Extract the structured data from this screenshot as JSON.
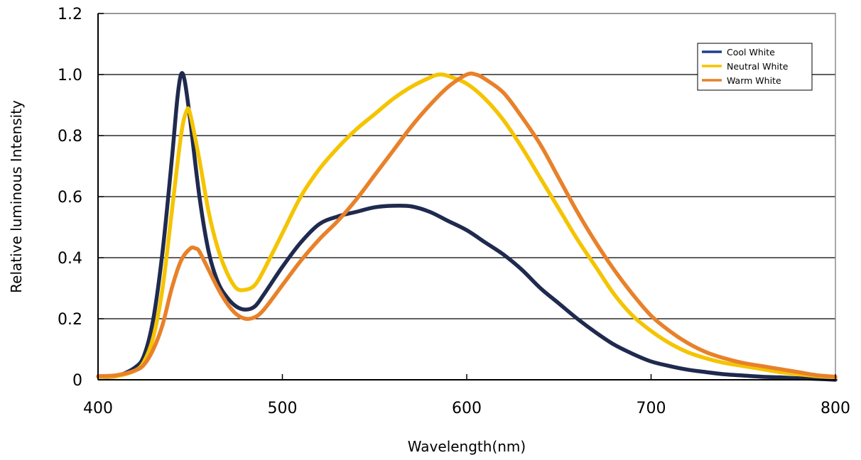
{
  "chart_data": {
    "type": "line",
    "title": "",
    "xlabel": "Wavelength(nm)",
    "ylabel": "Relative luminous Intensity",
    "xlim": [
      400,
      800
    ],
    "ylim": [
      0,
      1.2
    ],
    "xticks": [
      400,
      500,
      600,
      700,
      800
    ],
    "xtick_labels": [
      "400",
      "500",
      "600",
      "700",
      "800"
    ],
    "yticks": [
      0,
      0.2,
      0.4,
      0.6,
      0.8,
      1.0,
      1.2
    ],
    "ytick_labels": [
      "0",
      "0.2",
      "0.4",
      "0.6",
      "0.8",
      "1.0",
      "1.2"
    ],
    "grid": "horizontal",
    "legend_position": "top-right",
    "series": [
      {
        "name": "Cool White",
        "color": "#1f2a4e",
        "legend_color": "#1f3e8f",
        "points": [
          [
            400,
            0.01
          ],
          [
            410,
            0.012
          ],
          [
            420,
            0.04
          ],
          [
            425,
            0.08
          ],
          [
            430,
            0.2
          ],
          [
            435,
            0.42
          ],
          [
            440,
            0.72
          ],
          [
            443,
            0.92
          ],
          [
            445,
            1.0
          ],
          [
            447,
            0.98
          ],
          [
            450,
            0.85
          ],
          [
            455,
            0.6
          ],
          [
            460,
            0.42
          ],
          [
            465,
            0.32
          ],
          [
            470,
            0.27
          ],
          [
            475,
            0.24
          ],
          [
            480,
            0.23
          ],
          [
            485,
            0.24
          ],
          [
            490,
            0.28
          ],
          [
            500,
            0.37
          ],
          [
            510,
            0.45
          ],
          [
            520,
            0.51
          ],
          [
            530,
            0.535
          ],
          [
            540,
            0.55
          ],
          [
            550,
            0.565
          ],
          [
            560,
            0.57
          ],
          [
            570,
            0.568
          ],
          [
            580,
            0.55
          ],
          [
            590,
            0.52
          ],
          [
            600,
            0.49
          ],
          [
            610,
            0.45
          ],
          [
            620,
            0.41
          ],
          [
            630,
            0.36
          ],
          [
            640,
            0.3
          ],
          [
            650,
            0.25
          ],
          [
            660,
            0.2
          ],
          [
            670,
            0.155
          ],
          [
            680,
            0.115
          ],
          [
            690,
            0.085
          ],
          [
            700,
            0.06
          ],
          [
            710,
            0.045
          ],
          [
            720,
            0.033
          ],
          [
            730,
            0.025
          ],
          [
            740,
            0.018
          ],
          [
            750,
            0.014
          ],
          [
            760,
            0.01
          ],
          [
            770,
            0.008
          ],
          [
            780,
            0.005
          ],
          [
            790,
            0.003
          ],
          [
            800,
            0.0
          ]
        ]
      },
      {
        "name": "Neutral White",
        "color": "#f5c400",
        "legend_color": "#f5c400",
        "points": [
          [
            400,
            0.01
          ],
          [
            410,
            0.012
          ],
          [
            420,
            0.03
          ],
          [
            425,
            0.06
          ],
          [
            430,
            0.14
          ],
          [
            435,
            0.3
          ],
          [
            440,
            0.55
          ],
          [
            445,
            0.8
          ],
          [
            448,
            0.88
          ],
          [
            450,
            0.87
          ],
          [
            455,
            0.72
          ],
          [
            460,
            0.55
          ],
          [
            465,
            0.43
          ],
          [
            470,
            0.35
          ],
          [
            475,
            0.3
          ],
          [
            480,
            0.295
          ],
          [
            485,
            0.31
          ],
          [
            490,
            0.36
          ],
          [
            500,
            0.48
          ],
          [
            510,
            0.6
          ],
          [
            520,
            0.69
          ],
          [
            530,
            0.76
          ],
          [
            540,
            0.82
          ],
          [
            550,
            0.87
          ],
          [
            560,
            0.92
          ],
          [
            570,
            0.96
          ],
          [
            580,
            0.99
          ],
          [
            585,
            1.0
          ],
          [
            590,
            0.995
          ],
          [
            600,
            0.97
          ],
          [
            610,
            0.92
          ],
          [
            620,
            0.85
          ],
          [
            630,
            0.76
          ],
          [
            640,
            0.66
          ],
          [
            650,
            0.56
          ],
          [
            660,
            0.46
          ],
          [
            670,
            0.37
          ],
          [
            680,
            0.28
          ],
          [
            690,
            0.21
          ],
          [
            700,
            0.16
          ],
          [
            710,
            0.12
          ],
          [
            720,
            0.09
          ],
          [
            730,
            0.07
          ],
          [
            740,
            0.055
          ],
          [
            750,
            0.045
          ],
          [
            760,
            0.035
          ],
          [
            770,
            0.025
          ],
          [
            780,
            0.018
          ],
          [
            790,
            0.012
          ],
          [
            800,
            0.008
          ]
        ]
      },
      {
        "name": "Warm White",
        "color": "#e8812a",
        "legend_color": "#e8812a",
        "points": [
          [
            400,
            0.012
          ],
          [
            410,
            0.015
          ],
          [
            420,
            0.03
          ],
          [
            425,
            0.05
          ],
          [
            430,
            0.1
          ],
          [
            435,
            0.18
          ],
          [
            440,
            0.3
          ],
          [
            445,
            0.39
          ],
          [
            450,
            0.43
          ],
          [
            453,
            0.43
          ],
          [
            455,
            0.42
          ],
          [
            460,
            0.36
          ],
          [
            465,
            0.3
          ],
          [
            470,
            0.25
          ],
          [
            475,
            0.215
          ],
          [
            480,
            0.2
          ],
          [
            485,
            0.205
          ],
          [
            490,
            0.23
          ],
          [
            500,
            0.31
          ],
          [
            510,
            0.39
          ],
          [
            520,
            0.46
          ],
          [
            530,
            0.52
          ],
          [
            540,
            0.59
          ],
          [
            550,
            0.67
          ],
          [
            560,
            0.75
          ],
          [
            570,
            0.83
          ],
          [
            580,
            0.9
          ],
          [
            590,
            0.96
          ],
          [
            600,
            1.0
          ],
          [
            605,
            1.0
          ],
          [
            610,
            0.985
          ],
          [
            620,
            0.94
          ],
          [
            630,
            0.86
          ],
          [
            640,
            0.77
          ],
          [
            650,
            0.66
          ],
          [
            660,
            0.55
          ],
          [
            670,
            0.45
          ],
          [
            680,
            0.36
          ],
          [
            690,
            0.28
          ],
          [
            700,
            0.21
          ],
          [
            710,
            0.16
          ],
          [
            720,
            0.12
          ],
          [
            730,
            0.09
          ],
          [
            740,
            0.07
          ],
          [
            750,
            0.055
          ],
          [
            760,
            0.045
          ],
          [
            770,
            0.035
          ],
          [
            780,
            0.025
          ],
          [
            790,
            0.015
          ],
          [
            800,
            0.01
          ]
        ]
      }
    ]
  }
}
